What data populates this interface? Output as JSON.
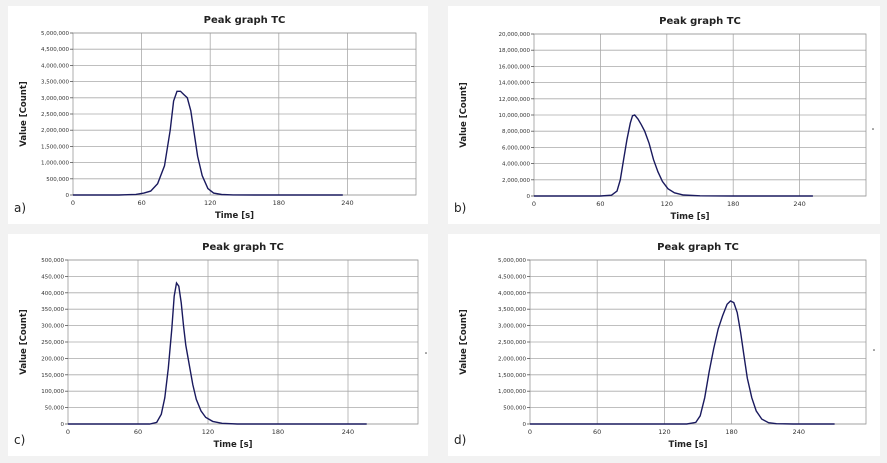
{
  "chart_data": [
    {
      "id": "a",
      "panel_label": "a)",
      "type": "line",
      "title": "Peak graph TC",
      "xlabel": "Time [s]",
      "ylabel": "Value [Count]",
      "xlim": [
        0,
        300
      ],
      "ylim": [
        0,
        5000000
      ],
      "xticks": [
        0,
        60,
        120,
        180,
        240
      ],
      "xtick_labels": [
        "0",
        "60",
        "120",
        "180",
        "240"
      ],
      "yticks": [
        0,
        500000,
        1000000,
        1500000,
        2000000,
        2500000,
        3000000,
        3500000,
        4000000,
        4500000,
        5000000
      ],
      "ytick_labels": [
        "0",
        "500,000",
        "1,000,000",
        "1,500,000",
        "2,000,000",
        "2,500,000",
        "3,000,000",
        "3,500,000",
        "4,000,000",
        "4,500,000",
        "5,000,000"
      ],
      "grid": true,
      "series": [
        {
          "name": "TC",
          "x": [
            0,
            40,
            55,
            62,
            68,
            74,
            80,
            85,
            88,
            91,
            94,
            97,
            100,
            103,
            106,
            109,
            113,
            118,
            123,
            130,
            140,
            160,
            200,
            236
          ],
          "y": [
            0,
            0,
            20000,
            60000,
            120000,
            350000,
            900000,
            2000000,
            2900000,
            3200000,
            3200000,
            3100000,
            3000000,
            2600000,
            1900000,
            1200000,
            600000,
            200000,
            60000,
            15000,
            3000,
            0,
            0,
            0
          ]
        }
      ]
    },
    {
      "id": "b",
      "panel_label": "b)",
      "type": "line",
      "title": "Peak graph TC",
      "xlabel": "Time [s]",
      "ylabel": "Value [Count]",
      "xlim": [
        0,
        300
      ],
      "ylim": [
        0,
        20000000
      ],
      "xticks": [
        0,
        60,
        120,
        180,
        240
      ],
      "xtick_labels": [
        "0",
        "60",
        "120",
        "180",
        "240"
      ],
      "yticks": [
        0,
        2000000,
        4000000,
        6000000,
        8000000,
        10000000,
        12000000,
        14000000,
        16000000,
        18000000,
        20000000
      ],
      "ytick_labels": [
        "0",
        "2,000,000",
        "4,000,000",
        "6,000,000",
        "8,000,000",
        "10,000,000",
        "12,000,000",
        "14,000,000",
        "16,000,000",
        "18,000,000",
        "20,000,000"
      ],
      "grid": true,
      "series": [
        {
          "name": "TC",
          "x": [
            0,
            60,
            70,
            75,
            78,
            81,
            84,
            87,
            89,
            91,
            94,
            97,
            100,
            104,
            108,
            112,
            116,
            121,
            127,
            135,
            150,
            180,
            230,
            252
          ],
          "y": [
            0,
            0,
            100000,
            600000,
            2000000,
            4500000,
            7000000,
            9000000,
            9900000,
            10000000,
            9500000,
            8800000,
            8000000,
            6500000,
            4500000,
            3000000,
            1800000,
            900000,
            400000,
            120000,
            20000,
            0,
            0,
            0
          ]
        }
      ]
    },
    {
      "id": "c",
      "panel_label": "c)",
      "type": "line",
      "title": "Peak graph TC",
      "xlabel": "Time [s]",
      "ylabel": "Value [Count]",
      "xlim": [
        0,
        300
      ],
      "ylim": [
        0,
        500000
      ],
      "xticks": [
        0,
        60,
        120,
        180,
        240
      ],
      "xtick_labels": [
        "0",
        "60",
        "120",
        "180",
        "240"
      ],
      "yticks": [
        0,
        50000,
        100000,
        150000,
        200000,
        250000,
        300000,
        350000,
        400000,
        450000,
        500000
      ],
      "ytick_labels": [
        "0",
        "50,000",
        "100,000",
        "150,000",
        "200,000",
        "250,000",
        "300,000",
        "350,000",
        "400,000",
        "450,000",
        "500,000"
      ],
      "grid": true,
      "series": [
        {
          "name": "TC",
          "x": [
            0,
            70,
            76,
            80,
            83,
            86,
            89,
            91,
            93,
            95,
            97,
            99,
            101,
            104,
            107,
            110,
            114,
            118,
            124,
            132,
            145,
            170,
            220,
            256
          ],
          "y": [
            0,
            0,
            5000,
            30000,
            80000,
            170000,
            290000,
            390000,
            430000,
            420000,
            370000,
            300000,
            240000,
            180000,
            120000,
            75000,
            40000,
            20000,
            8000,
            2000,
            0,
            0,
            0,
            0
          ]
        }
      ]
    },
    {
      "id": "d",
      "panel_label": "d)",
      "type": "line",
      "title": "Peak graph TC",
      "xlabel": "Time [s]",
      "ylabel": "Value [Count]",
      "xlim": [
        0,
        300
      ],
      "ylim": [
        0,
        5000000
      ],
      "xticks": [
        0,
        60,
        120,
        180,
        240
      ],
      "xtick_labels": [
        "0",
        "60",
        "120",
        "180",
        "240"
      ],
      "yticks": [
        0,
        500000,
        1000000,
        1500000,
        2000000,
        2500000,
        3000000,
        3500000,
        4000000,
        4500000,
        5000000
      ],
      "ytick_labels": [
        "0",
        "500,000",
        "1,000,000",
        "1,500,000",
        "2,000,000",
        "2,500,000",
        "3,000,000",
        "3,500,000",
        "4,000,000",
        "4,500,000",
        "5,000,000"
      ],
      "grid": true,
      "series": [
        {
          "name": "TC",
          "x": [
            0,
            140,
            148,
            152,
            156,
            160,
            164,
            168,
            172,
            176,
            179,
            182,
            185,
            188,
            191,
            194,
            198,
            202,
            207,
            213,
            220,
            235,
            255,
            272
          ],
          "y": [
            0,
            0,
            50000,
            250000,
            800000,
            1600000,
            2300000,
            2900000,
            3300000,
            3650000,
            3750000,
            3700000,
            3400000,
            2800000,
            2100000,
            1400000,
            800000,
            400000,
            150000,
            40000,
            10000,
            0,
            0,
            0
          ]
        }
      ]
    }
  ]
}
